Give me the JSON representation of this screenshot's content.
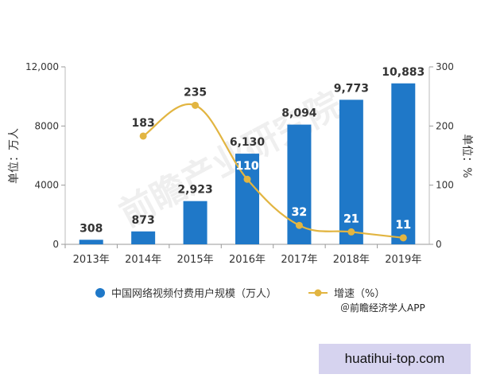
{
  "chart_data": {
    "type": "bar",
    "categories": [
      "2013年",
      "2014年",
      "2015年",
      "2016年",
      "2017年",
      "2018年",
      "2019年"
    ],
    "series": [
      {
        "name": "中国网络视频付费用户规模（万人）",
        "type": "bar",
        "axis": "left",
        "values": [
          308,
          873,
          2923,
          6130,
          8094,
          9773,
          10883
        ],
        "labels": [
          "308",
          "873",
          "2,923",
          "6,130",
          "8,094",
          "9,773",
          "10,883"
        ]
      },
      {
        "name": "增速（%）",
        "type": "line",
        "axis": "right",
        "values": [
          null,
          183,
          235,
          110,
          32,
          21,
          11
        ],
        "labels": [
          "",
          "183",
          "235",
          "110",
          "32",
          "21",
          "11"
        ]
      }
    ],
    "ylabel_left": "单位：万人",
    "ylabel_right": "单位：%",
    "ylim_left": [
      0,
      12000
    ],
    "ylim_right": [
      0,
      300
    ],
    "yticks_left": [
      "0",
      "4000",
      "8000",
      "12,000"
    ],
    "yticks_right": [
      "0",
      "100",
      "200",
      "300"
    ],
    "legend_position": "bottom",
    "grid": false,
    "bar_color": "#1f78c8",
    "line_color": "#e2b541",
    "watermark": "前瞻产业研究院"
  },
  "source": "＠前瞻经济学人APP",
  "corner_watermark": "huatihui-top.com"
}
